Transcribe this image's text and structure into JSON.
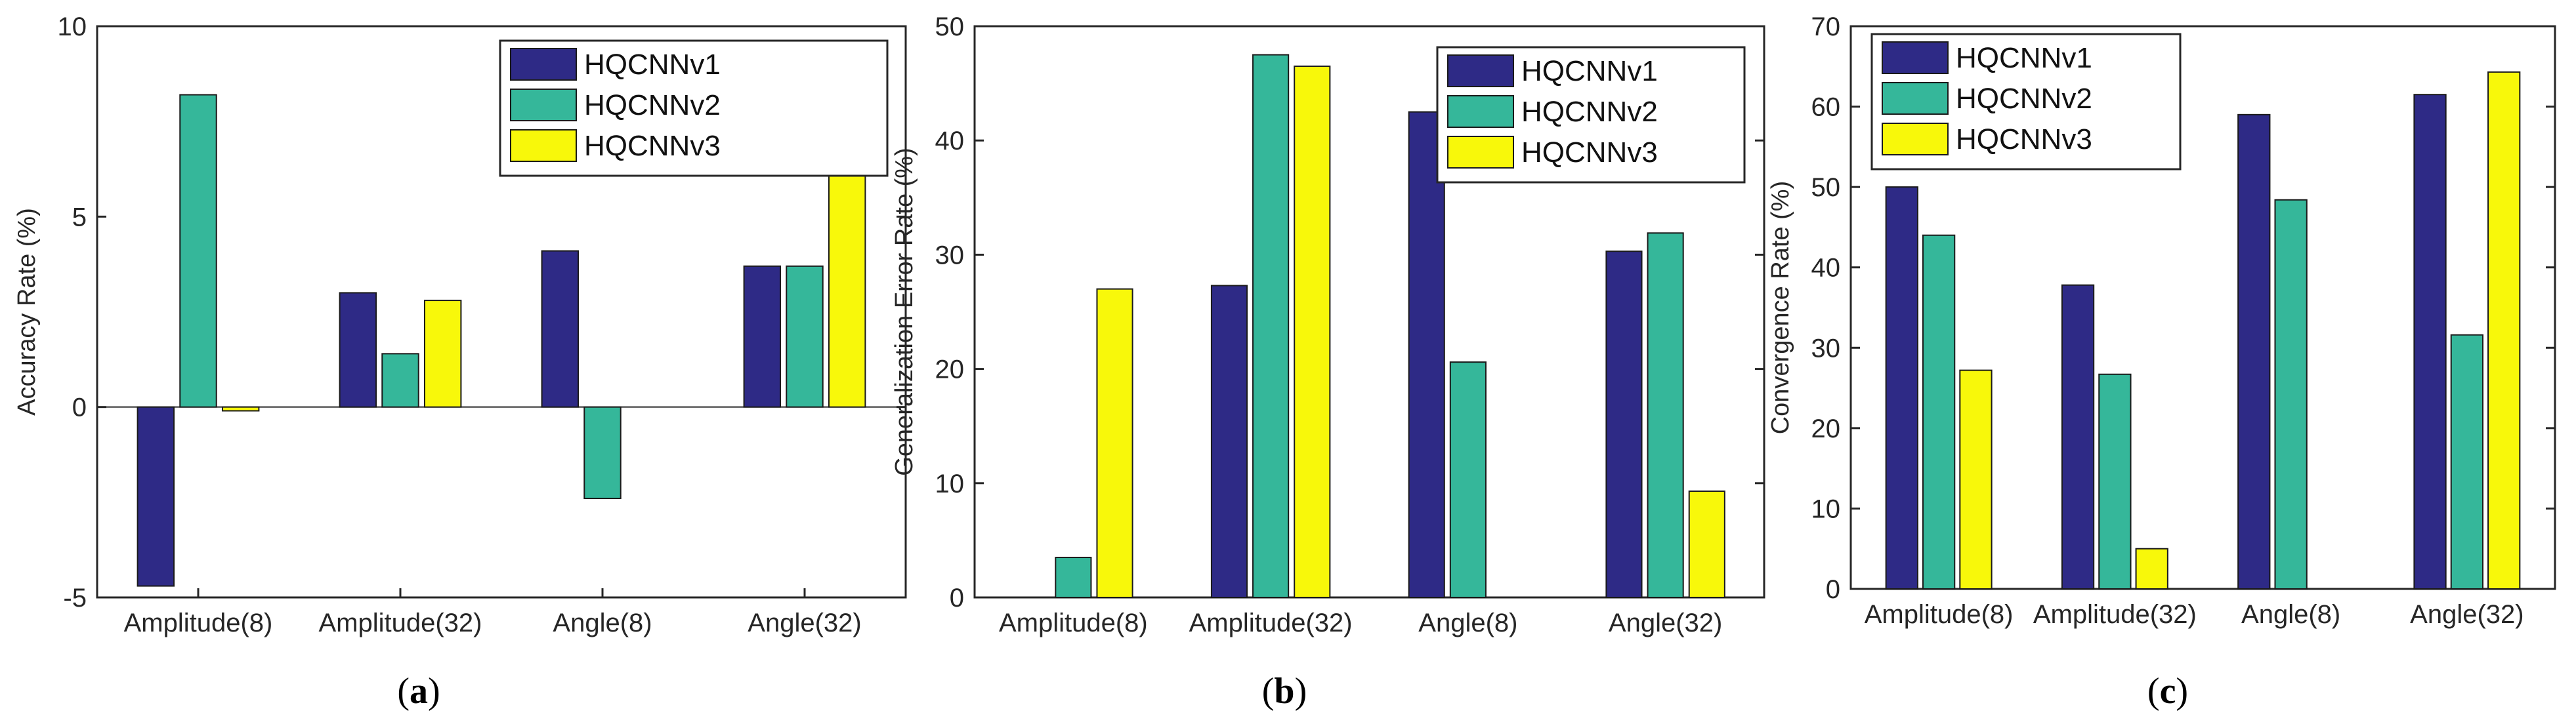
{
  "figure": {
    "captions": [
      {
        "open": "(",
        "letter": "a",
        "close": ")"
      },
      {
        "open": "(",
        "letter": "b",
        "close": ")"
      },
      {
        "open": "(",
        "letter": "c",
        "close": ")"
      }
    ]
  },
  "colors": {
    "HQCNNv1": "#2e2a86",
    "HQCNNv2": "#35b79a",
    "HQCNNv3": "#f8f80a",
    "axis": "#262626",
    "frame": "#262626"
  },
  "chart_data": [
    {
      "type": "bar",
      "title": "",
      "xlabel": "",
      "ylabel": "Accuracy Rate (%)",
      "ylim": [
        -5,
        10
      ],
      "yticks": [
        -5,
        0,
        5,
        10
      ],
      "grid": false,
      "legend_position": "top-right",
      "categories": [
        "Amplitude(8)",
        "Amplitude(32)",
        "Angle(8)",
        "Angle(32)"
      ],
      "series": [
        {
          "name": "HQCNNv1",
          "values": [
            -4.7,
            3.0,
            4.1,
            3.7
          ]
        },
        {
          "name": "HQCNNv2",
          "values": [
            8.2,
            1.4,
            -2.4,
            3.7
          ]
        },
        {
          "name": "HQCNNv3",
          "values": [
            -0.1,
            2.8,
            0.0,
            6.3
          ]
        }
      ]
    },
    {
      "type": "bar",
      "title": "",
      "xlabel": "",
      "ylabel": "Generalization Error Rate (%)",
      "ylim": [
        0,
        50
      ],
      "yticks": [
        0,
        10,
        20,
        30,
        40,
        50
      ],
      "grid": false,
      "legend_position": "top-right",
      "categories": [
        "Amplitude(8)",
        "Amplitude(32)",
        "Angle(8)",
        "Angle(32)"
      ],
      "series": [
        {
          "name": "HQCNNv1",
          "values": [
            0.0,
            27.3,
            42.5,
            30.3
          ]
        },
        {
          "name": "HQCNNv2",
          "values": [
            3.5,
            47.5,
            20.6,
            31.9
          ]
        },
        {
          "name": "HQCNNv3",
          "values": [
            27.0,
            46.5,
            0.0,
            9.3
          ]
        }
      ]
    },
    {
      "type": "bar",
      "title": "",
      "xlabel": "",
      "ylabel": "Convergence Rate (%)",
      "ylim": [
        0,
        70
      ],
      "yticks": [
        0,
        10,
        20,
        30,
        40,
        50,
        60,
        70
      ],
      "grid": false,
      "legend_position": "top-left",
      "categories": [
        "Amplitude(8)",
        "Amplitude(32)",
        "Angle(8)",
        "Angle(32)"
      ],
      "series": [
        {
          "name": "HQCNNv1",
          "values": [
            50.0,
            37.8,
            59.0,
            61.5
          ]
        },
        {
          "name": "HQCNNv2",
          "values": [
            44.0,
            26.7,
            48.4,
            31.6
          ]
        },
        {
          "name": "HQCNNv3",
          "values": [
            27.2,
            5.0,
            0.0,
            64.3
          ]
        }
      ]
    }
  ]
}
